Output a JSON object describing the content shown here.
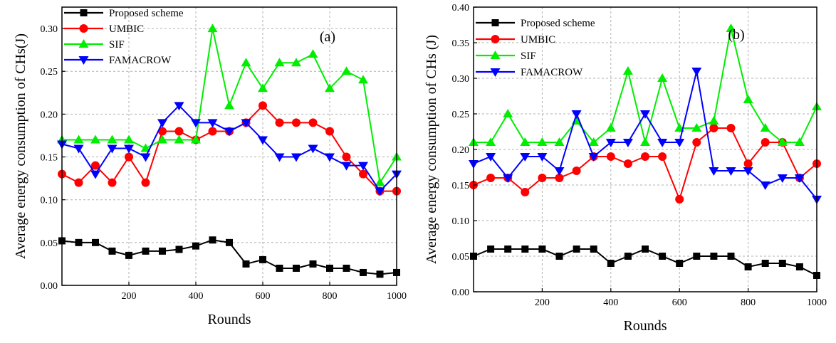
{
  "chart_data": [
    {
      "type": "line",
      "panel_label": "(a)",
      "xlabel": "Rounds",
      "ylabel": "Average energy consumption of CHs(J)",
      "xlim": [
        0,
        1000
      ],
      "ylim": [
        0,
        0.325
      ],
      "xticks": [
        200,
        400,
        600,
        800,
        1000
      ],
      "yticks": [
        0.0,
        0.05,
        0.1,
        0.15,
        0.2,
        0.25,
        0.3
      ],
      "ytick_labels": [
        "0.00",
        "0.05",
        "0.10",
        "0.15",
        "0.20",
        "0.25",
        "0.30"
      ],
      "grid": true,
      "legend_position": "top-left",
      "x": [
        0,
        50,
        100,
        150,
        200,
        250,
        300,
        350,
        400,
        450,
        500,
        550,
        600,
        650,
        700,
        750,
        800,
        850,
        900,
        950,
        1000
      ],
      "series": [
        {
          "name": "Proposed scheme",
          "color": "#000000",
          "marker": "square",
          "values": [
            0.052,
            0.05,
            0.05,
            0.04,
            0.035,
            0.04,
            0.04,
            0.042,
            0.046,
            0.053,
            0.05,
            0.025,
            0.03,
            0.02,
            0.02,
            0.025,
            0.02,
            0.02,
            0.015,
            0.013,
            0.015
          ]
        },
        {
          "name": "UMBIC",
          "color": "#ff0000",
          "marker": "circle",
          "values": [
            0.13,
            0.12,
            0.14,
            0.12,
            0.15,
            0.12,
            0.18,
            0.18,
            0.17,
            0.18,
            0.18,
            0.19,
            0.21,
            0.19,
            0.19,
            0.19,
            0.18,
            0.15,
            0.13,
            0.11,
            0.11
          ]
        },
        {
          "name": "SIF",
          "color": "#00ee00",
          "marker": "triangle-up",
          "values": [
            0.17,
            0.17,
            0.17,
            0.17,
            0.17,
            0.16,
            0.17,
            0.17,
            0.17,
            0.3,
            0.21,
            0.26,
            0.23,
            0.26,
            0.26,
            0.27,
            0.23,
            0.25,
            0.24,
            0.12,
            0.15
          ]
        },
        {
          "name": "FAMACROW",
          "color": "#0000ff",
          "marker": "triangle-down",
          "values": [
            0.165,
            0.16,
            0.13,
            0.16,
            0.16,
            0.15,
            0.19,
            0.21,
            0.19,
            0.19,
            0.18,
            0.19,
            0.17,
            0.15,
            0.15,
            0.16,
            0.15,
            0.14,
            0.14,
            0.11,
            0.13
          ]
        }
      ]
    },
    {
      "type": "line",
      "panel_label": "(b)",
      "xlabel": "Rounds",
      "ylabel": "Average energy consumption of CHs (J)",
      "xlim": [
        0,
        1000
      ],
      "ylim": [
        0,
        0.4
      ],
      "xticks": [
        200,
        400,
        600,
        800,
        1000
      ],
      "yticks": [
        0.0,
        0.05,
        0.1,
        0.15,
        0.2,
        0.25,
        0.3,
        0.35,
        0.4
      ],
      "ytick_labels": [
        "0.00",
        "0.05",
        "0.10",
        "0.15",
        "0.20",
        "0.25",
        "0.30",
        "0.35",
        "0.40"
      ],
      "grid": true,
      "legend_position": "top-left",
      "x": [
        0,
        50,
        100,
        150,
        200,
        250,
        300,
        350,
        400,
        450,
        500,
        550,
        600,
        650,
        700,
        750,
        800,
        850,
        900,
        950,
        1000
      ],
      "series": [
        {
          "name": "Proposed scheme",
          "color": "#000000",
          "marker": "square",
          "values": [
            0.05,
            0.06,
            0.06,
            0.06,
            0.06,
            0.05,
            0.06,
            0.06,
            0.04,
            0.05,
            0.06,
            0.05,
            0.04,
            0.05,
            0.05,
            0.05,
            0.035,
            0.04,
            0.04,
            0.035,
            0.023
          ]
        },
        {
          "name": "UMBIC",
          "color": "#ff0000",
          "marker": "circle",
          "values": [
            0.15,
            0.16,
            0.16,
            0.14,
            0.16,
            0.16,
            0.17,
            0.19,
            0.19,
            0.18,
            0.19,
            0.19,
            0.13,
            0.21,
            0.23,
            0.23,
            0.18,
            0.21,
            0.21,
            0.16,
            0.18
          ]
        },
        {
          "name": "SIF",
          "color": "#00ee00",
          "marker": "triangle-up",
          "values": [
            0.21,
            0.21,
            0.25,
            0.21,
            0.21,
            0.21,
            0.24,
            0.21,
            0.23,
            0.31,
            0.21,
            0.3,
            0.23,
            0.23,
            0.24,
            0.37,
            0.27,
            0.23,
            0.21,
            0.21,
            0.26
          ]
        },
        {
          "name": "FAMACROW",
          "color": "#0000ff",
          "marker": "triangle-down",
          "values": [
            0.18,
            0.19,
            0.16,
            0.19,
            0.19,
            0.17,
            0.25,
            0.19,
            0.21,
            0.21,
            0.25,
            0.21,
            0.21,
            0.31,
            0.17,
            0.17,
            0.17,
            0.15,
            0.16,
            0.16,
            0.13
          ]
        }
      ]
    }
  ]
}
